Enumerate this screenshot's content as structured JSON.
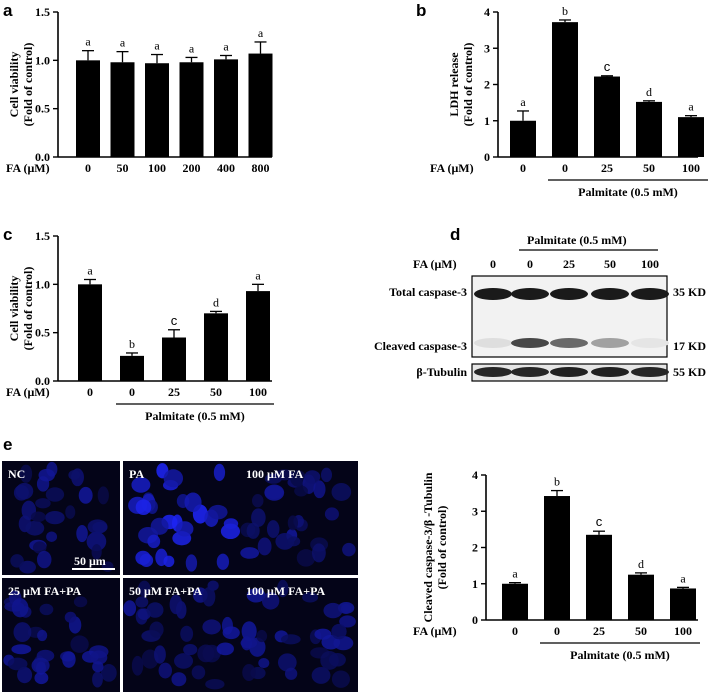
{
  "panel_labels": {
    "a": "a",
    "b": "b",
    "c": "c",
    "d": "d",
    "e": "e"
  },
  "chart_data": [
    {
      "panel": "a",
      "type": "bar",
      "ylabel": [
        "Cell viability",
        "(Fold of control)"
      ],
      "xlabel": "FA (μM)",
      "categories": [
        "0",
        "50",
        "100",
        "200",
        "400",
        "800"
      ],
      "values": [
        1.0,
        0.98,
        0.97,
        0.98,
        1.01,
        1.07
      ],
      "errors": [
        0.1,
        0.11,
        0.09,
        0.05,
        0.04,
        0.12
      ],
      "significance": [
        "a",
        "a",
        "a",
        "a",
        "a",
        "a"
      ],
      "ylim": [
        0,
        1.5
      ],
      "yticks": [
        "0.0",
        "0.5",
        "1.0",
        "1.5"
      ],
      "group_label": ""
    },
    {
      "panel": "b",
      "type": "bar",
      "ylabel": [
        "LDH release",
        "(Fold of control)"
      ],
      "xlabel": "FA (μM)",
      "categories": [
        "0",
        "0",
        "25",
        "50",
        "100"
      ],
      "values": [
        1.0,
        3.72,
        2.22,
        1.52,
        1.1
      ],
      "errors": [
        0.27,
        0.06,
        0.02,
        0.03,
        0.04
      ],
      "significance": [
        "a",
        "b",
        "c",
        "d",
        "a"
      ],
      "ylim": [
        0,
        4
      ],
      "yticks": [
        "0",
        "1",
        "2",
        "3",
        "4"
      ],
      "group_label": "Palmitate (0.5 mM)"
    },
    {
      "panel": "c",
      "type": "bar",
      "ylabel": [
        "Cell viability",
        "(Fold of control)"
      ],
      "xlabel": "FA (μM)",
      "categories": [
        "0",
        "0",
        "25",
        "50",
        "100"
      ],
      "values": [
        1.0,
        0.26,
        0.45,
        0.7,
        0.93
      ],
      "errors": [
        0.05,
        0.03,
        0.08,
        0.02,
        0.07
      ],
      "significance": [
        "a",
        "b",
        "c",
        "d",
        "a"
      ],
      "ylim": [
        0,
        1.5
      ],
      "yticks": [
        "0.0",
        "0.5",
        "1.0",
        "1.5"
      ],
      "group_label": "Palmitate (0.5 mM)"
    },
    {
      "panel": "d",
      "type": "bar",
      "ylabel": [
        "Cleaved caspase-3/β -Tubulin",
        "(Fold of control)"
      ],
      "xlabel": "FA (μM)",
      "categories": [
        "0",
        "0",
        "25",
        "50",
        "100"
      ],
      "values": [
        1.0,
        3.42,
        2.35,
        1.25,
        0.87
      ],
      "errors": [
        0.03,
        0.15,
        0.1,
        0.05,
        0.03
      ],
      "significance": [
        "a",
        "b",
        "c",
        "d",
        "a"
      ],
      "ylim": [
        0,
        4
      ],
      "yticks": [
        "0",
        "1",
        "2",
        "3",
        "4"
      ],
      "group_label": "Palmitate (0.5 mM)"
    }
  ],
  "blot": {
    "group_label": "Palmitate (0.5 mM)",
    "fa_label": "FA (μM)",
    "lanes": [
      "0",
      "0",
      "25",
      "50",
      "100"
    ],
    "rows": [
      {
        "label": "Total  caspase-3",
        "size": "35 KD",
        "intensity": [
          0.95,
          0.95,
          0.95,
          0.95,
          0.95
        ]
      },
      {
        "label": "Cleaved caspase-3",
        "size": "17 KD",
        "intensity": [
          0.08,
          0.75,
          0.6,
          0.35,
          0.05
        ]
      },
      {
        "label": "β-Tubulin",
        "size": "55 KD",
        "intensity": [
          0.9,
          0.9,
          0.92,
          0.92,
          0.9
        ]
      }
    ]
  },
  "micrographs": {
    "labels": [
      "NC",
      "PA",
      "100 μM FA",
      "25 μM FA+PA",
      "50 μM FA+PA",
      "100 μM FA+PA"
    ],
    "scale_bar": "50 μm"
  }
}
